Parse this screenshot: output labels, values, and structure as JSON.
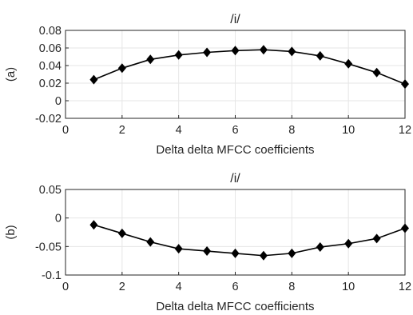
{
  "chart_data": [
    {
      "panel_label": "(a)",
      "type": "line",
      "title": "/i/",
      "xlabel": "Delta delta MFCC coefficients",
      "ylabel": "(a)",
      "xlim": [
        0,
        12
      ],
      "ylim": [
        -0.02,
        0.08
      ],
      "xticks": [
        0,
        2,
        4,
        6,
        8,
        10,
        12
      ],
      "xtick_labels": [
        "0",
        "2",
        "4",
        "6",
        "8",
        "10",
        "12"
      ],
      "yticks": [
        -0.02,
        0,
        0.02,
        0.04,
        0.06,
        0.08
      ],
      "ytick_labels": [
        "-0.02",
        "0",
        "0.02",
        "0.04",
        "0.06",
        "0.08"
      ],
      "grid": true,
      "marker": "diamond",
      "line_color": "#000000",
      "x": [
        1,
        2,
        3,
        4,
        5,
        6,
        7,
        8,
        9,
        10,
        11,
        12
      ],
      "values": [
        0.024,
        0.037,
        0.047,
        0.052,
        0.055,
        0.057,
        0.058,
        0.056,
        0.051,
        0.042,
        0.032,
        0.019
      ]
    },
    {
      "panel_label": "(b)",
      "type": "line",
      "title": "/i/",
      "xlabel": "Delta delta MFCC coefficients",
      "ylabel": "(b)",
      "xlim": [
        0,
        12
      ],
      "ylim": [
        -0.1,
        0.05
      ],
      "xticks": [
        0,
        2,
        4,
        6,
        8,
        10,
        12
      ],
      "xtick_labels": [
        "0",
        "2",
        "4",
        "6",
        "8",
        "10",
        "12"
      ],
      "yticks": [
        -0.1,
        -0.05,
        0,
        0.05
      ],
      "ytick_labels": [
        "-0.1",
        "-0.05",
        "0",
        "0.05"
      ],
      "grid": true,
      "marker": "diamond",
      "line_color": "#000000",
      "x": [
        1,
        2,
        3,
        4,
        5,
        6,
        7,
        8,
        9,
        10,
        11,
        12
      ],
      "values": [
        -0.012,
        -0.027,
        -0.042,
        -0.054,
        -0.058,
        -0.062,
        -0.066,
        -0.062,
        -0.051,
        -0.045,
        -0.036,
        -0.018
      ]
    }
  ]
}
